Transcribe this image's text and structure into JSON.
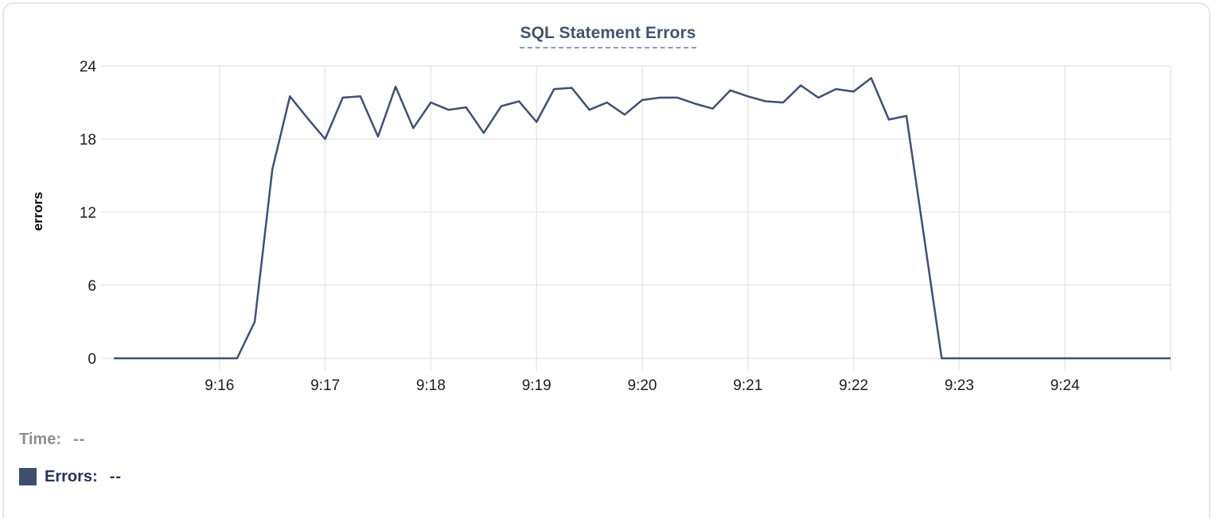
{
  "chart_data": {
    "type": "line",
    "title": "SQL Statement Errors",
    "ylabel": "errors",
    "xlabel": "",
    "ylim": [
      0,
      24
    ],
    "y_ticks": [
      0,
      6,
      12,
      18,
      24
    ],
    "x_domain": [
      "9:15:00",
      "9:25:00"
    ],
    "x_tick_labels": [
      "9:16",
      "9:17",
      "9:18",
      "9:19",
      "9:20",
      "9:21",
      "9:22",
      "9:23",
      "9:24"
    ],
    "grid": true,
    "legend_position": "bottom-left",
    "series": [
      {
        "name": "Errors",
        "color": "#41506f",
        "points": [
          [
            "9:15:00",
            0
          ],
          [
            "9:15:10",
            0
          ],
          [
            "9:15:20",
            0
          ],
          [
            "9:15:30",
            0
          ],
          [
            "9:15:40",
            0
          ],
          [
            "9:15:50",
            0
          ],
          [
            "9:16:00",
            0
          ],
          [
            "9:16:10",
            0
          ],
          [
            "9:16:20",
            3
          ],
          [
            "9:16:30",
            15.5
          ],
          [
            "9:16:40",
            21.5
          ],
          [
            "9:16:50",
            19.7
          ],
          [
            "9:17:00",
            18
          ],
          [
            "9:17:10",
            21.4
          ],
          [
            "9:17:20",
            21.5
          ],
          [
            "9:17:30",
            18.2
          ],
          [
            "9:17:40",
            22.3
          ],
          [
            "9:17:50",
            18.9
          ],
          [
            "9:18:00",
            21
          ],
          [
            "9:18:10",
            20.4
          ],
          [
            "9:18:20",
            20.6
          ],
          [
            "9:18:30",
            18.5
          ],
          [
            "9:18:40",
            20.7
          ],
          [
            "9:18:50",
            21.1
          ],
          [
            "9:19:00",
            19.4
          ],
          [
            "9:19:10",
            22.1
          ],
          [
            "9:19:20",
            22.2
          ],
          [
            "9:19:30",
            20.4
          ],
          [
            "9:19:40",
            21
          ],
          [
            "9:19:50",
            20
          ],
          [
            "9:20:00",
            21.2
          ],
          [
            "9:20:10",
            21.4
          ],
          [
            "9:20:20",
            21.4
          ],
          [
            "9:20:30",
            20.9
          ],
          [
            "9:20:40",
            20.5
          ],
          [
            "9:20:50",
            22
          ],
          [
            "9:21:00",
            21.5
          ],
          [
            "9:21:10",
            21.1
          ],
          [
            "9:21:20",
            21
          ],
          [
            "9:21:30",
            22.4
          ],
          [
            "9:21:40",
            21.4
          ],
          [
            "9:21:50",
            22.1
          ],
          [
            "9:22:00",
            21.9
          ],
          [
            "9:22:10",
            23
          ],
          [
            "9:22:20",
            19.6
          ],
          [
            "9:22:30",
            19.9
          ],
          [
            "9:22:40",
            10
          ],
          [
            "9:22:50",
            0
          ],
          [
            "9:23:00",
            0
          ],
          [
            "9:23:10",
            0
          ],
          [
            "9:23:20",
            0
          ],
          [
            "9:23:30",
            0
          ],
          [
            "9:23:40",
            0
          ],
          [
            "9:23:50",
            0
          ],
          [
            "9:24:00",
            0
          ],
          [
            "9:24:10",
            0
          ],
          [
            "9:24:20",
            0
          ],
          [
            "9:24:30",
            0
          ],
          [
            "9:24:40",
            0
          ],
          [
            "9:24:50",
            0
          ],
          [
            "9:25:00",
            0
          ]
        ]
      }
    ]
  },
  "readout": {
    "time_label": "Time:",
    "time_value": "--",
    "errors_label": "Errors:",
    "errors_value": "--"
  },
  "colors": {
    "card_border": "#e5e5e8",
    "grid": "#e9e9ec",
    "line": "#41506f",
    "title": "#44546e",
    "title_underline": "#8f9cb3",
    "tick_text": "#1c1c1e",
    "readout_muted": "#8e8e93",
    "readout_accent": "#25365b",
    "swatch": "#3f4e6c"
  }
}
